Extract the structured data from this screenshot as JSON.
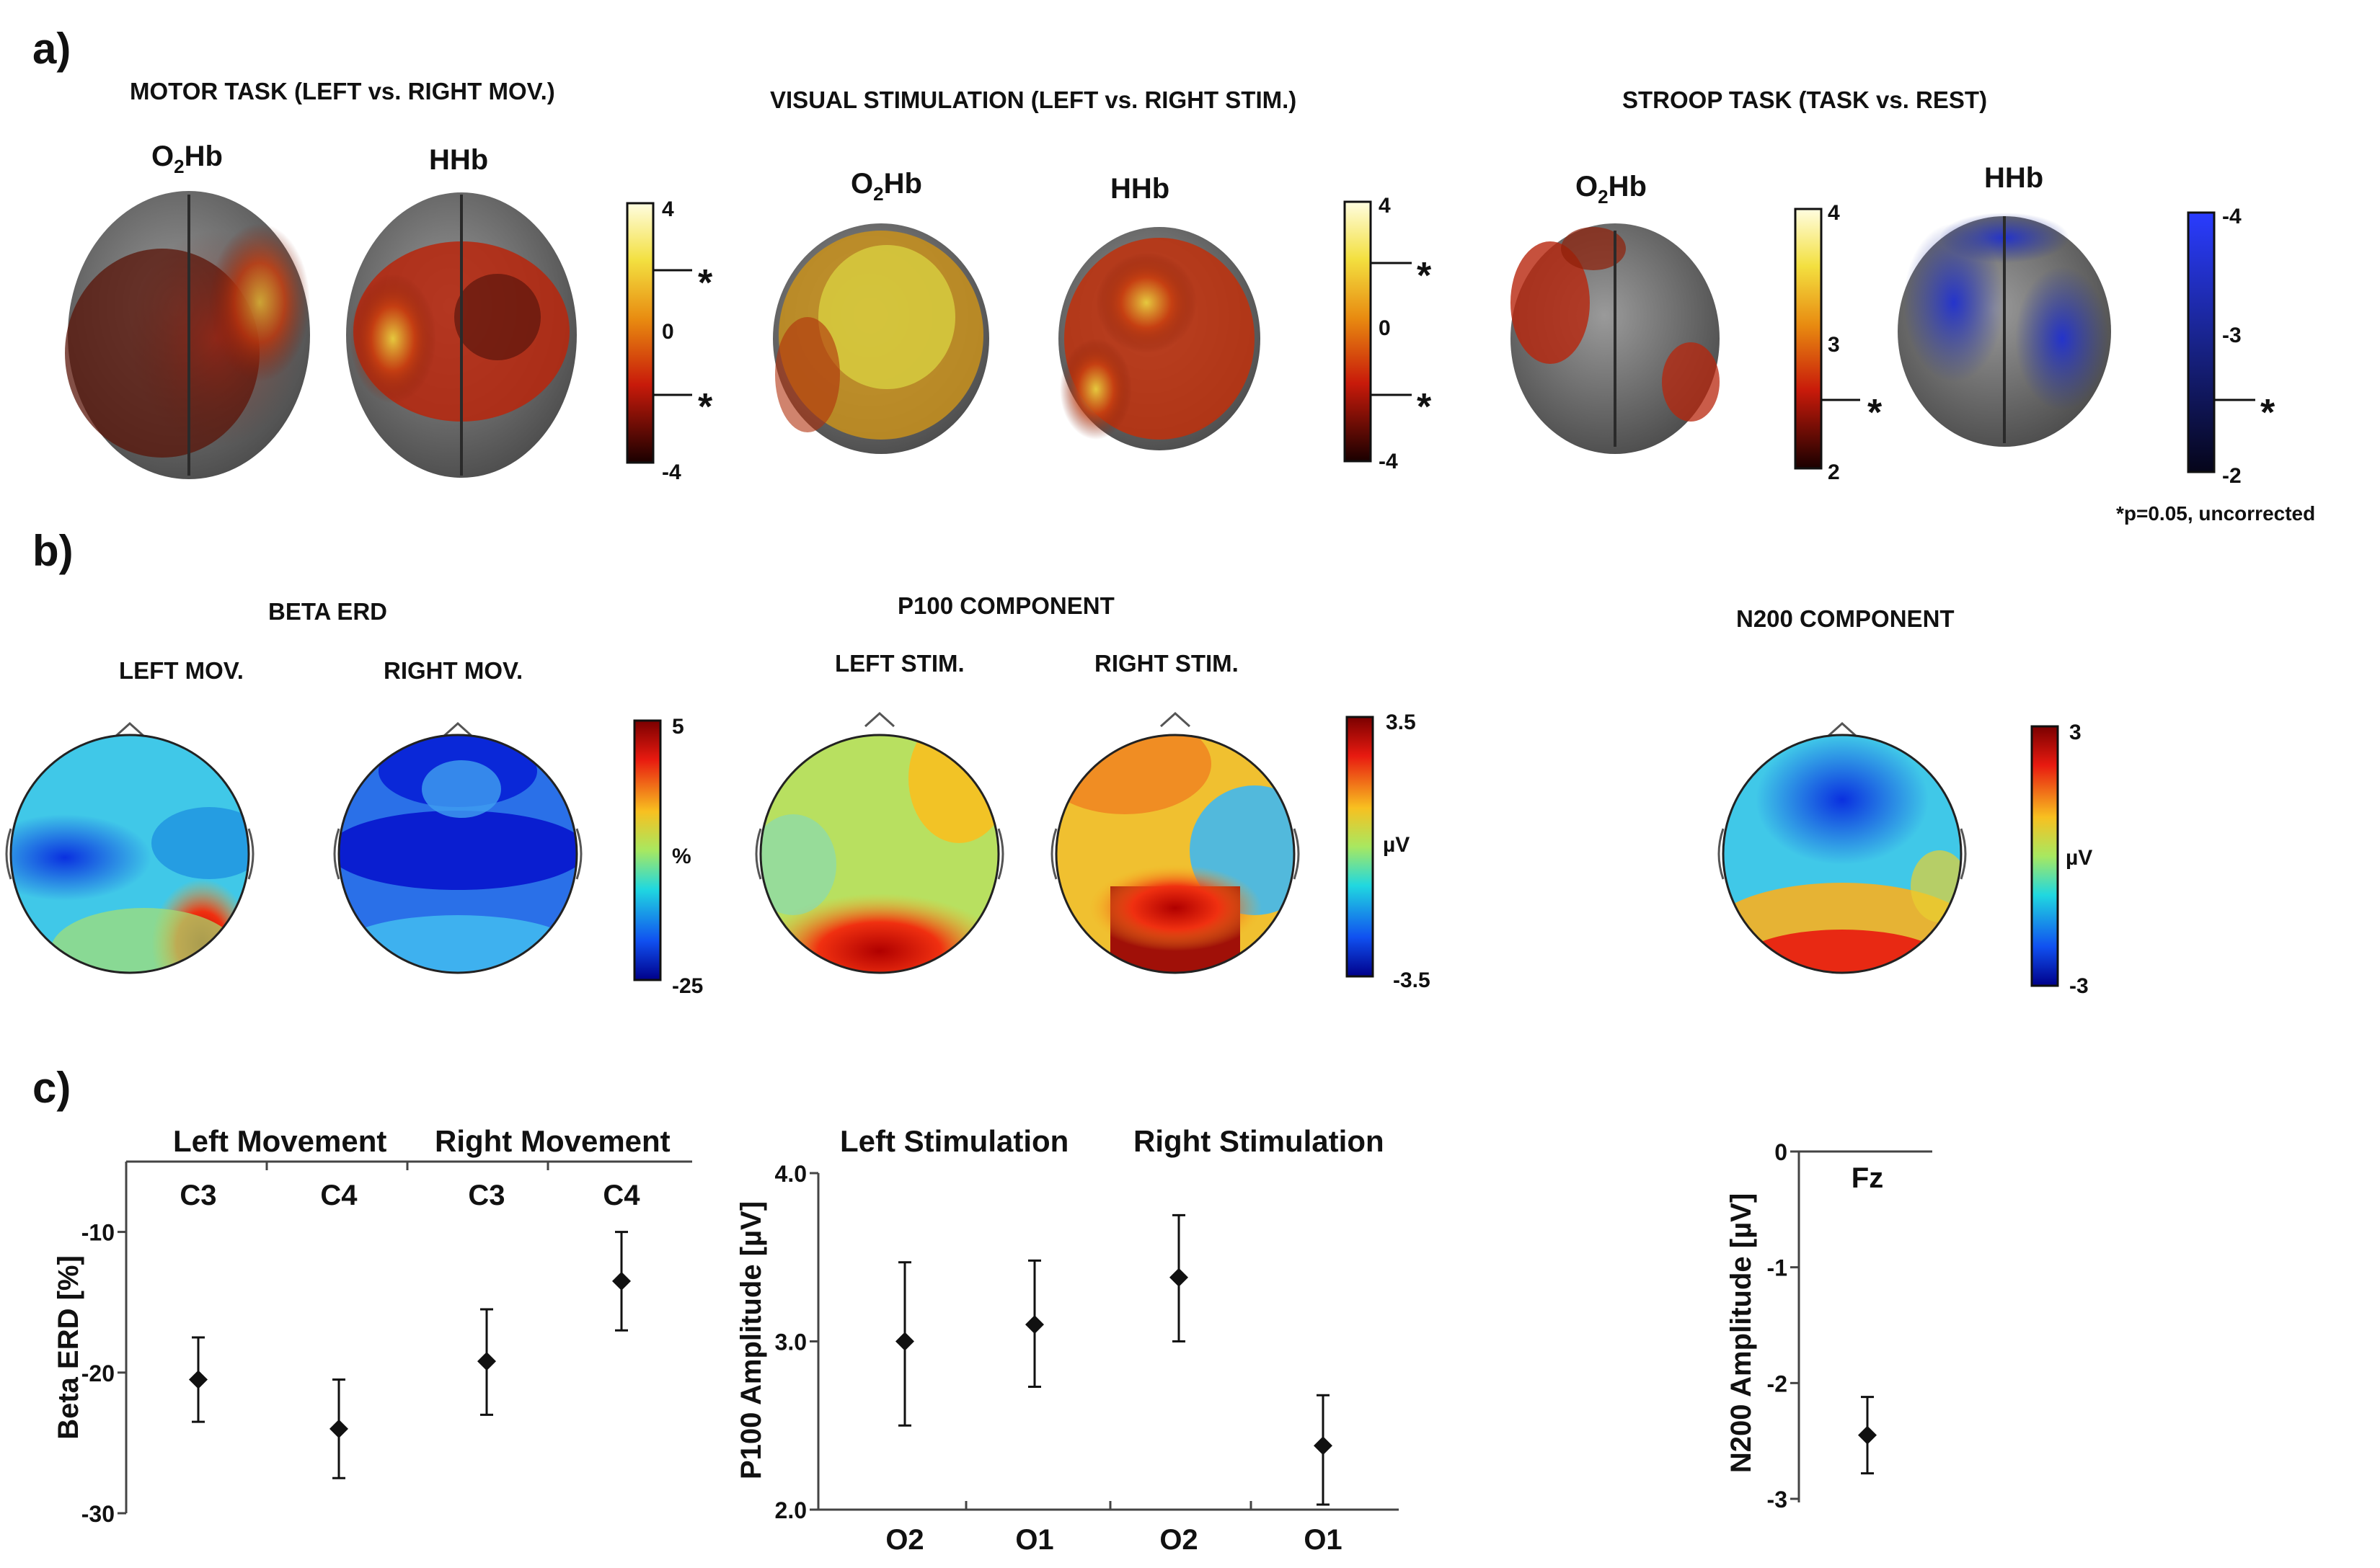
{
  "panels": {
    "a": {
      "label": "a)",
      "groups": [
        {
          "title": "MOTOR TASK (LEFT vs. RIGHT MOV.)",
          "sub1": "O",
          "sub1_sub": "2",
          "sub1_rest": "Hb",
          "sub2": "HHb",
          "colorbar": {
            "ticks": [
              "4",
              "0",
              "-4"
            ],
            "star": "*"
          }
        },
        {
          "title": "VISUAL STIMULATION (LEFT vs. RIGHT STIM.)",
          "sub1": "O",
          "sub1_sub": "2",
          "sub1_rest": "Hb",
          "sub2": "HHb",
          "colorbar": {
            "ticks": [
              "4",
              "0",
              "-4"
            ],
            "star": "*"
          }
        },
        {
          "title": "STROOP TASK (TASK vs. REST)",
          "sub1": "O",
          "sub1_sub": "2",
          "sub1_rest": "Hb",
          "sub2": "HHb",
          "colorbar_hot": {
            "ticks": [
              "4",
              "3",
              "2"
            ],
            "star": "*"
          },
          "colorbar_cold": {
            "ticks": [
              "-4",
              "-3",
              "-2"
            ],
            "star": "*"
          }
        }
      ],
      "footnote": "*p=0.05, uncorrected"
    },
    "b": {
      "label": "b)",
      "groups": [
        {
          "title": "BETA ERD",
          "sub1": "LEFT MOV.",
          "sub2": "RIGHT MOV.",
          "colorbar": {
            "max": "5",
            "unit": "%",
            "min": "-25"
          }
        },
        {
          "title": "P100 COMPONENT",
          "sub1": "LEFT STIM.",
          "sub2": "RIGHT STIM.",
          "colorbar": {
            "max": "3.5",
            "unit": "µV",
            "min": "-3.5"
          }
        },
        {
          "title": "N200 COMPONENT",
          "colorbar": {
            "max": "3",
            "unit": "µV",
            "min": "-3"
          }
        }
      ]
    },
    "c": {
      "label": "c)"
    }
  },
  "colors": {
    "brain_gray": "#6e6e6e",
    "hot_dark": "#2a0000",
    "hot_red": "#c0180c",
    "hot_yellow": "#f2e23a",
    "cold_blue": "#1a2fc8",
    "jet_blue": "#1030d0",
    "jet_red": "#cc1010"
  },
  "chart_data": [
    {
      "type": "scatter",
      "title": "",
      "group_labels": [
        "Left Movement",
        "Right Movement"
      ],
      "categories": [
        "C3",
        "C4",
        "C3",
        "C4"
      ],
      "values": [
        -20.5,
        -24,
        -19.2,
        -13.5
      ],
      "err_low": [
        -23.5,
        -27.5,
        -23,
        -17
      ],
      "err_high": [
        -17.5,
        -20.5,
        -15.5,
        -10
      ],
      "ylabel": "Beta ERD [%]",
      "yticks": [
        "-10",
        "-20",
        "-30"
      ],
      "ylim": [
        -30,
        -5
      ]
    },
    {
      "type": "scatter",
      "group_labels": [
        "Left Stimulation",
        "Right Stimulation"
      ],
      "categories": [
        "O2",
        "O1",
        "O2",
        "O1"
      ],
      "values": [
        3.0,
        3.1,
        3.38,
        2.38
      ],
      "err_low": [
        2.5,
        2.73,
        3.0,
        2.03
      ],
      "err_high": [
        3.47,
        3.48,
        3.75,
        2.68
      ],
      "ylabel": "P100 Amplitude [µV]",
      "yticks": [
        "4.0",
        "3.0",
        "2.0"
      ],
      "ylim": [
        2.0,
        4.0
      ]
    },
    {
      "type": "scatter",
      "categories": [
        "Fz"
      ],
      "values": [
        -2.45
      ],
      "err_low": [
        -2.78
      ],
      "err_high": [
        -2.12
      ],
      "ylabel": "N200 Amplitude [µV]",
      "yticks": [
        "0",
        "-1",
        "-2",
        "-3"
      ],
      "ylim": [
        -3,
        0
      ]
    }
  ]
}
